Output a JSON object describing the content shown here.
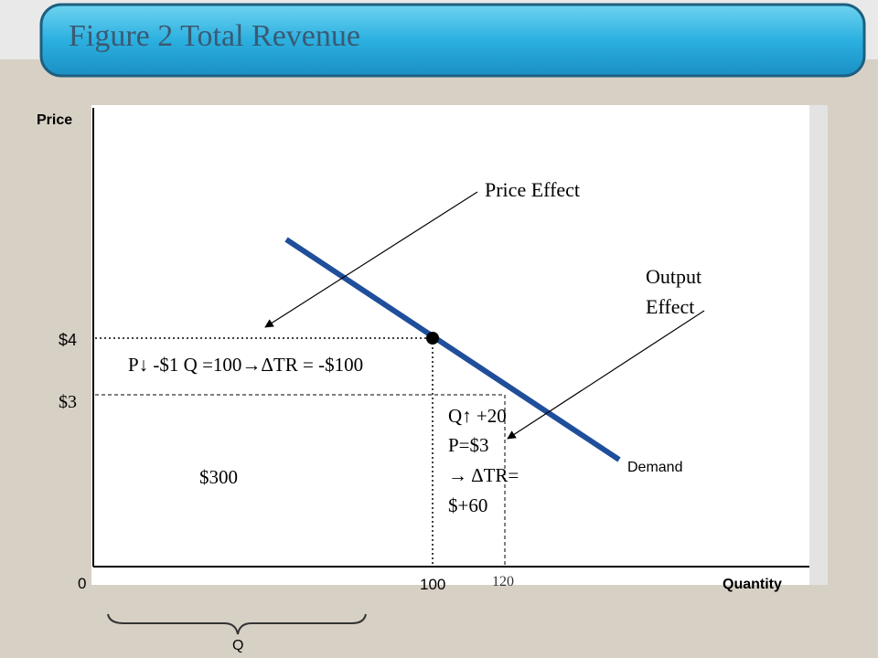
{
  "header": {
    "title": "Figure 2 Total Revenue"
  },
  "axes": {
    "y_label": "Price",
    "x_label": "Quantity",
    "origin": "0",
    "y_ticks": [
      "$4",
      "$3"
    ],
    "x_ticks": [
      "100",
      "120"
    ]
  },
  "curve": {
    "label": "Demand"
  },
  "annotations": {
    "price_effect": "Price Effect",
    "output_effect": [
      "Output",
      "Effect"
    ],
    "price_change": "P↓ -$1 Q =100→ΔTR = -$100",
    "area": "$300",
    "quantity_change": [
      "Q↑ +20",
      "P=$3",
      "→ ΔTR=",
      "$+60"
    ],
    "brace": "Q"
  }
}
